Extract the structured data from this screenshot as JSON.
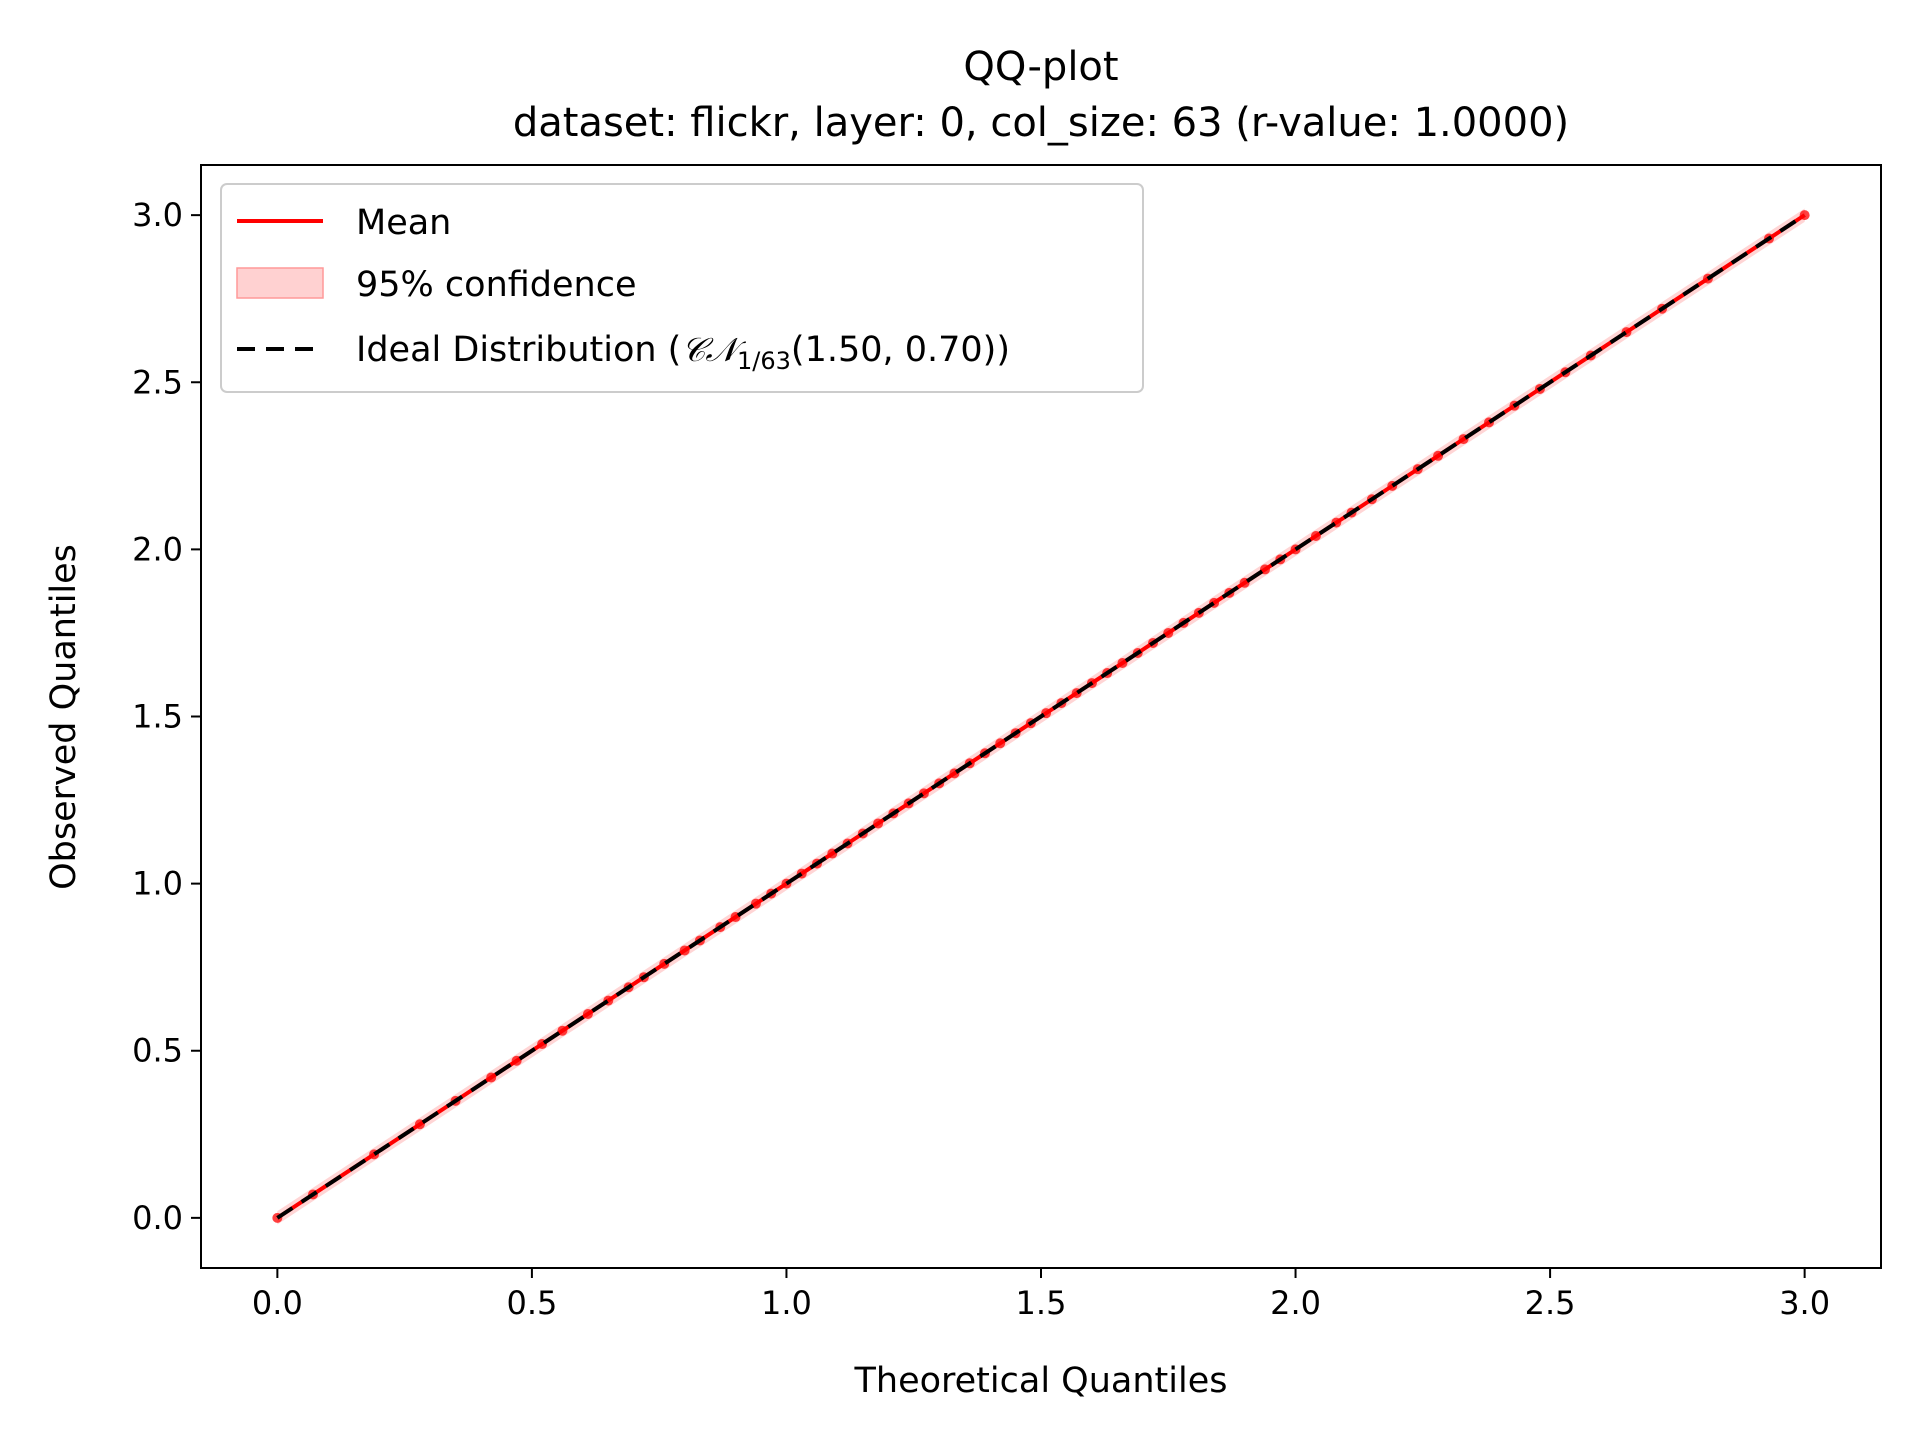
{
  "chart_data": {
    "type": "line",
    "title": "QQ-plot",
    "subtitle": "dataset: flickr, layer: 0, col_size: 63 (r-value: 1.0000)",
    "xlabel": "Theoretical Quantiles",
    "ylabel": "Observed Quantiles",
    "xlim": [
      -0.15,
      3.15
    ],
    "ylim": [
      -0.15,
      3.15
    ],
    "xticks": [
      0.0,
      0.5,
      1.0,
      1.5,
      2.0,
      2.5,
      3.0
    ],
    "yticks": [
      0.0,
      0.5,
      1.0,
      1.5,
      2.0,
      2.5,
      3.0
    ],
    "xtick_labels": [
      "0.0",
      "0.5",
      "1.0",
      "1.5",
      "2.0",
      "2.5",
      "3.0"
    ],
    "ytick_labels": [
      "0.0",
      "0.5",
      "1.0",
      "1.5",
      "2.0",
      "2.5",
      "3.0"
    ],
    "grid": false,
    "legend_position": "top-left",
    "legend": {
      "mean": "Mean",
      "confidence": "95% confidence",
      "ideal_prefix": "Ideal Distribution (",
      "ideal_cn": "𝒞𝒩",
      "ideal_sub": "1/63",
      "ideal_suffix": "(1.50, 0.70))"
    },
    "colors": {
      "mean": "#ff0000",
      "confidence": "#ffb3b3",
      "ideal": "#000000"
    },
    "series": [
      {
        "name": "Mean",
        "x": [
          0.0,
          0.07,
          0.19,
          0.28,
          0.35,
          0.42,
          0.47,
          0.52,
          0.56,
          0.61,
          0.65,
          0.69,
          0.72,
          0.76,
          0.8,
          0.83,
          0.87,
          0.9,
          0.94,
          0.97,
          1.0,
          1.03,
          1.06,
          1.09,
          1.12,
          1.15,
          1.18,
          1.21,
          1.24,
          1.27,
          1.3,
          1.33,
          1.36,
          1.39,
          1.42,
          1.45,
          1.48,
          1.51,
          1.54,
          1.57,
          1.6,
          1.63,
          1.66,
          1.69,
          1.72,
          1.75,
          1.78,
          1.81,
          1.84,
          1.87,
          1.9,
          1.94,
          1.97,
          2.0,
          2.04,
          2.08,
          2.11,
          2.15,
          2.19,
          2.24,
          2.28,
          2.33,
          2.38,
          2.43,
          2.48,
          2.53,
          2.58,
          2.65,
          2.72,
          2.81,
          2.93,
          3.0
        ],
        "y": [
          0.0,
          0.07,
          0.19,
          0.28,
          0.35,
          0.42,
          0.47,
          0.52,
          0.56,
          0.61,
          0.65,
          0.69,
          0.72,
          0.76,
          0.8,
          0.83,
          0.87,
          0.9,
          0.94,
          0.97,
          1.0,
          1.03,
          1.06,
          1.09,
          1.12,
          1.15,
          1.18,
          1.21,
          1.24,
          1.27,
          1.3,
          1.33,
          1.36,
          1.39,
          1.42,
          1.45,
          1.48,
          1.51,
          1.54,
          1.57,
          1.6,
          1.63,
          1.66,
          1.69,
          1.72,
          1.75,
          1.78,
          1.81,
          1.84,
          1.87,
          1.9,
          1.94,
          1.97,
          2.0,
          2.04,
          2.08,
          2.11,
          2.15,
          2.19,
          2.24,
          2.28,
          2.33,
          2.38,
          2.43,
          2.48,
          2.53,
          2.58,
          2.65,
          2.72,
          2.81,
          2.93,
          3.0
        ]
      },
      {
        "name": "95% confidence",
        "half_width": 0.02
      },
      {
        "name": "Ideal Distribution",
        "x": [
          0.0,
          3.0
        ],
        "y": [
          0.0,
          3.0
        ]
      }
    ]
  }
}
